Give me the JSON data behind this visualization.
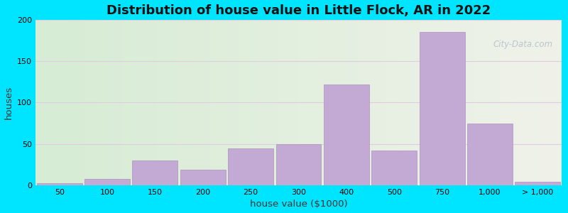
{
  "title": "Distribution of house value in Little Flock, AR in 2022",
  "xlabel": "house value ($1000)",
  "ylabel": "houses",
  "tick_labels": [
    "50",
    "100",
    "150",
    "200",
    "250",
    "300",
    "400",
    "500",
    "750",
    "1,000",
    "> 1,000"
  ],
  "bar_heights": [
    3,
    8,
    30,
    19,
    45,
    50,
    122,
    42,
    185,
    75,
    4
  ],
  "bar_color": "#c3aad4",
  "bar_edgecolor": "#b090be",
  "ylim": [
    0,
    200
  ],
  "yticks": [
    0,
    50,
    100,
    150,
    200
  ],
  "bg_color_left": "#d6ecd4",
  "bg_color_right": "#f0f2ea",
  "outer_bg": "#00e5ff",
  "grid_color": "#e0cce0",
  "title_fontsize": 13,
  "axis_label_fontsize": 9.5,
  "tick_fontsize": 8,
  "watermark_text": "City-Data.com"
}
